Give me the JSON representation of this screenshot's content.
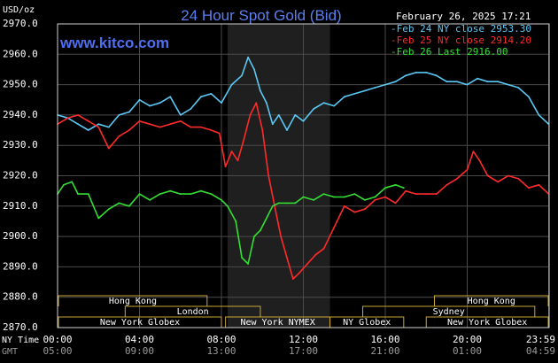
{
  "header": {
    "unit_label": "USD/oz",
    "title": "24 Hour Spot Gold (Bid)",
    "date_time": "February 26, 2025 17:21",
    "watermark": "www.kitco.com"
  },
  "legend": [
    {
      "text": "-Feb 24 NY close 2953.30",
      "color": "#5bc8f5"
    },
    {
      "text": "-Feb 25 NY close 2914.20",
      "color": "#ff2a2a"
    },
    {
      "text": "-Feb 26 Last 2916.00",
      "color": "#33e033"
    }
  ],
  "sessions": [
    {
      "name": "Hong Kong",
      "row": 0,
      "start": -0.1,
      "end": 7.3
    },
    {
      "name": "Hong Kong",
      "row": 0,
      "start": 18.4,
      "end": 24.2
    },
    {
      "name": "London",
      "row": 1,
      "start": 3.3,
      "end": 9.9
    },
    {
      "name": "Sydney",
      "row": 1,
      "start": 14.9,
      "end": 23.3
    },
    {
      "name": "New York Globex",
      "row": 2,
      "start": 0.0,
      "end": 8.0
    },
    {
      "name": "New York NYMEX",
      "row": 2,
      "start": 8.2,
      "end": 13.3
    },
    {
      "name": "NY Globex",
      "row": 2,
      "start": 13.3,
      "end": 16.9
    },
    {
      "name": "New York Globex",
      "row": 2,
      "start": 18.0,
      "end": 24.2
    }
  ],
  "time_labels": {
    "ny_time_label": "NY Time",
    "gmt_label": "GMT",
    "ny": [
      "00:00",
      "04:00",
      "08:00",
      "12:00",
      "16:00",
      "20:00",
      "23:59"
    ],
    "gmt": [
      "05:00",
      "09:00",
      "13:00",
      "17:00",
      "21:00",
      "01:00",
      "04:59"
    ]
  },
  "chart_data": {
    "type": "line",
    "title": "24 Hour Spot Gold (Bid)",
    "ylabel": "USD/oz",
    "xlabel": "NY Time",
    "xlim": [
      0,
      24
    ],
    "ylim": [
      2870,
      2970
    ],
    "yticks": [
      "2970.0",
      "2960.0",
      "2950.0",
      "2940.0",
      "2930.0",
      "2920.0",
      "2910.0",
      "2900.0",
      "2890.0",
      "2880.0",
      "2870.0"
    ],
    "xticks_hours": [
      0,
      4,
      8,
      12,
      16,
      20,
      23.98
    ],
    "grid": true,
    "shaded_hours": [
      8.3,
      13.3
    ],
    "series": [
      {
        "name": "Feb 24 NY close 2953.30",
        "color": "#5bc8f5",
        "x": [
          0,
          0.5,
          1.0,
          1.5,
          2.0,
          2.5,
          3.0,
          3.5,
          4.0,
          4.5,
          5.0,
          5.5,
          6.0,
          6.5,
          7.0,
          7.5,
          8.0,
          8.5,
          9.0,
          9.3,
          9.6,
          9.9,
          10.2,
          10.5,
          10.8,
          11.2,
          11.6,
          12.0,
          12.5,
          13.0,
          13.5,
          14.0,
          14.5,
          15.0,
          15.5,
          16.0,
          16.5,
          17.0,
          17.5,
          18.0,
          18.5,
          19.0,
          19.5,
          20.0,
          20.5,
          21.0,
          21.5,
          22.0,
          22.5,
          23.0,
          23.5,
          23.98
        ],
        "values": [
          2940,
          2939,
          2937,
          2935,
          2937,
          2936,
          2940,
          2941,
          2945,
          2943,
          2944,
          2946,
          2940,
          2942,
          2946,
          2947,
          2944,
          2950,
          2953,
          2959,
          2955,
          2948,
          2944,
          2937,
          2940,
          2935,
          2940,
          2938,
          2942,
          2944,
          2943,
          2946,
          2947,
          2948,
          2949,
          2950,
          2951,
          2953,
          2954,
          2954,
          2953,
          2951,
          2951,
          2950,
          2952,
          2951,
          2951,
          2950,
          2949,
          2946,
          2940,
          2937
        ]
      },
      {
        "name": "Feb 25 NY close 2914.20",
        "color": "#ff2a2a",
        "x": [
          0,
          0.5,
          1.0,
          1.5,
          2.0,
          2.5,
          3.0,
          3.5,
          4.0,
          4.5,
          5.0,
          5.5,
          6.0,
          6.5,
          7.0,
          7.5,
          7.9,
          8.2,
          8.5,
          8.8,
          9.1,
          9.4,
          9.7,
          10.0,
          10.3,
          10.6,
          10.9,
          11.2,
          11.5,
          11.8,
          12.2,
          12.6,
          13.0,
          13.5,
          14.0,
          14.5,
          15.0,
          15.5,
          16.0,
          16.5,
          17.0,
          17.5,
          18.0,
          18.5,
          19.0,
          19.5,
          20.0,
          20.3,
          20.6,
          21.0,
          21.5,
          22.0,
          22.5,
          23.0,
          23.5,
          23.98
        ],
        "values": [
          2937,
          2939,
          2940,
          2938,
          2936,
          2929,
          2933,
          2935,
          2938,
          2937,
          2936,
          2937,
          2938,
          2936,
          2936,
          2935,
          2934,
          2923,
          2928,
          2925,
          2932,
          2940,
          2944,
          2935,
          2920,
          2910,
          2900,
          2893,
          2886,
          2888,
          2891,
          2894,
          2896,
          2903,
          2910,
          2908,
          2909,
          2912,
          2913,
          2911,
          2915,
          2914,
          2914,
          2914,
          2917,
          2919,
          2922,
          2928,
          2925,
          2920,
          2918,
          2920,
          2919,
          2916,
          2917,
          2914
        ]
      },
      {
        "name": "Feb 26 Last 2916.00",
        "color": "#33e033",
        "x": [
          0,
          0.3,
          0.7,
          1.0,
          1.5,
          2.0,
          2.5,
          3.0,
          3.5,
          4.0,
          4.5,
          5.0,
          5.5,
          6.0,
          6.5,
          7.0,
          7.5,
          8.0,
          8.3,
          8.7,
          9.0,
          9.3,
          9.6,
          9.9,
          10.2,
          10.5,
          10.8,
          11.2,
          11.6,
          12.0,
          12.5,
          13.0,
          13.5,
          14.0,
          14.5,
          15.0,
          15.5,
          16.0,
          16.5,
          16.9
        ],
        "values": [
          2914,
          2917,
          2918,
          2914,
          2914,
          2906,
          2909,
          2911,
          2910,
          2914,
          2912,
          2914,
          2915,
          2914,
          2914,
          2915,
          2914,
          2912,
          2910,
          2905,
          2893,
          2891,
          2900,
          2902,
          2906,
          2910,
          2911,
          2911,
          2911,
          2913,
          2912,
          2914,
          2913,
          2913,
          2914,
          2912,
          2913,
          2916,
          2917,
          2916
        ]
      }
    ]
  }
}
